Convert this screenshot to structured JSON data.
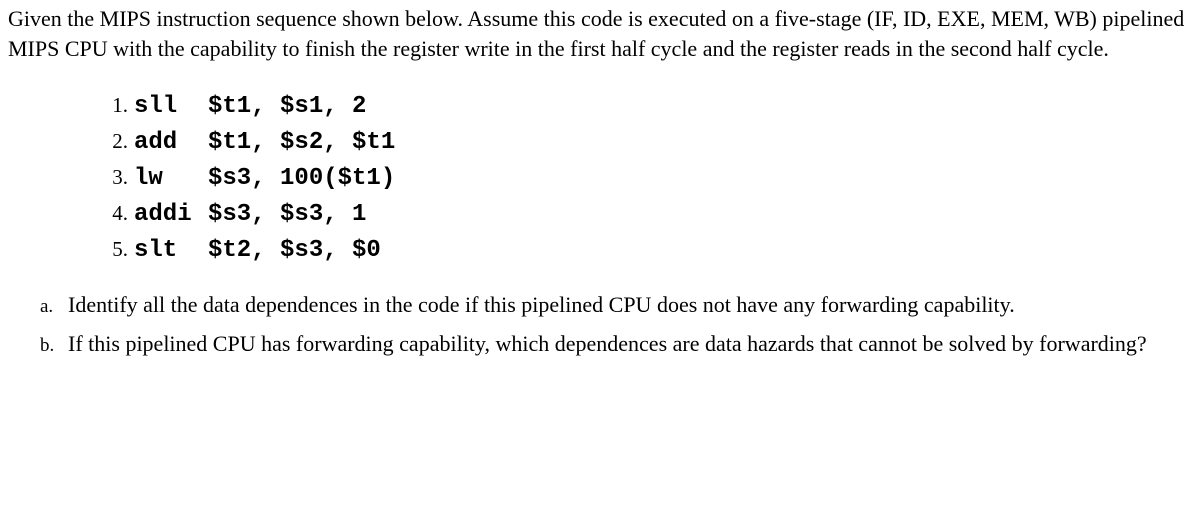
{
  "intro": "Given the MIPS instruction sequence shown below. Assume this code is executed on a five-stage (IF, ID, EXE, MEM, WB) pipelined MIPS CPU with the capability to finish the register write in the first half cycle and the register reads in the second half cycle.",
  "code": {
    "lines": [
      {
        "num": "1.",
        "mnemonic": "sll",
        "operands": "$t1, $s1, 2"
      },
      {
        "num": "2.",
        "mnemonic": "add",
        "operands": "$t1, $s2, $t1"
      },
      {
        "num": "3.",
        "mnemonic": "lw",
        "operands": "$s3, 100($t1)"
      },
      {
        "num": "4.",
        "mnemonic": "addi",
        "operands": "$s3, $s3, 1"
      },
      {
        "num": "5.",
        "mnemonic": "slt",
        "operands": "$t2, $s3, $0"
      }
    ]
  },
  "questions": [
    {
      "letter": "a.",
      "text": "Identify all the data dependences in the code if this pipelined CPU does not have any forwarding capability."
    },
    {
      "letter": "b.",
      "text": "If this pipelined CPU has forwarding capability, which dependences are data hazards that cannot be solved by forwarding?"
    }
  ]
}
